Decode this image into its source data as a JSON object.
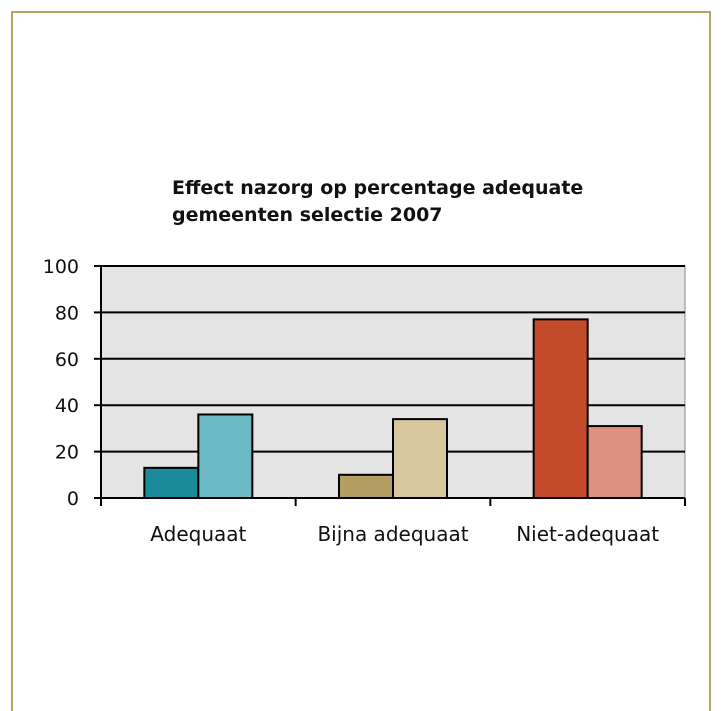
{
  "chart_data": {
    "type": "bar",
    "title": "Effect nazorg op percentage adequate gemeenten selectie 2007",
    "xlabel": "",
    "ylabel": "",
    "categories": [
      "Adequaat",
      "Bijna adequaat",
      "Niet-adequaat"
    ],
    "series": [
      {
        "values": [
          13,
          10,
          77
        ]
      },
      {
        "values": [
          36,
          34,
          31
        ]
      }
    ],
    "colors": [
      [
        "#1b8a9a",
        "#6bb9c5"
      ],
      [
        "#b59e62",
        "#d6c79e"
      ],
      [
        "#c44a2c",
        "#dc9180"
      ]
    ],
    "ylim": [
      0,
      100
    ],
    "yticks": [
      0,
      20,
      40,
      60,
      80,
      100
    ],
    "grid": true,
    "legend": "none",
    "plot_background": "#e4e4e4",
    "frame_color": "#b8a068"
  }
}
